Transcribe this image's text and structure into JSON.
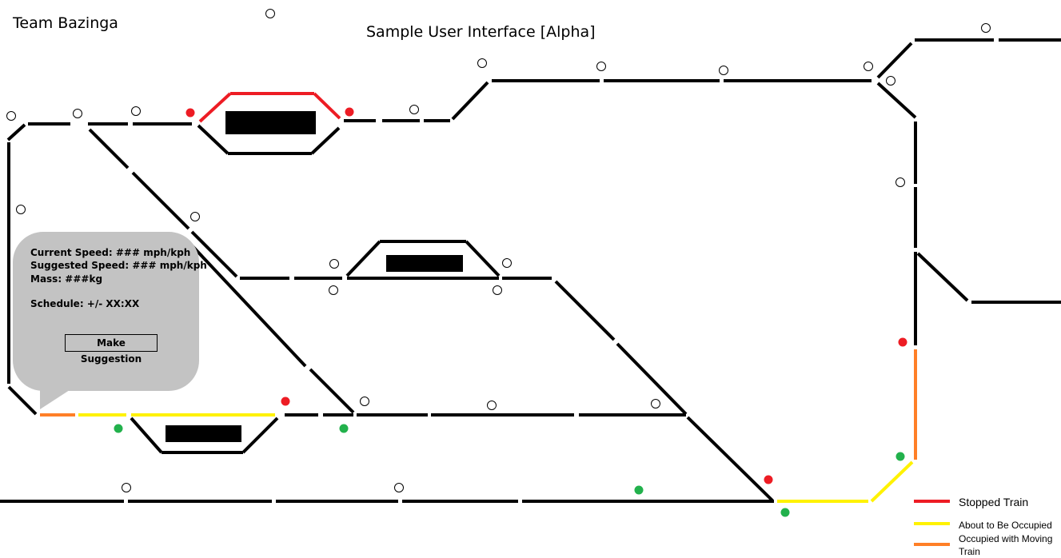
{
  "header": {
    "team": "Team Bazinga",
    "title": "Sample User Interface  [Alpha]"
  },
  "info_panel": {
    "current_speed": "Current Speed: ### mph/kph",
    "suggested_speed": "Suggested Speed: ### mph/kph",
    "mass": "Mass: ###kg",
    "schedule": "Schedule: +/- XX:XX",
    "button_label": "Make Suggestion"
  },
  "legend": {
    "stopped": "Stopped Train",
    "about": "About to Be Occupied",
    "moving": "Occupied with Moving Train"
  },
  "colors": {
    "track": "#000000",
    "stopped": "#ed1c24",
    "about": "#fff200",
    "moving": "#ff7f27",
    "signal_red": "#ed1c24",
    "signal_green": "#22b14c",
    "panel": "#c3c3c3"
  }
}
